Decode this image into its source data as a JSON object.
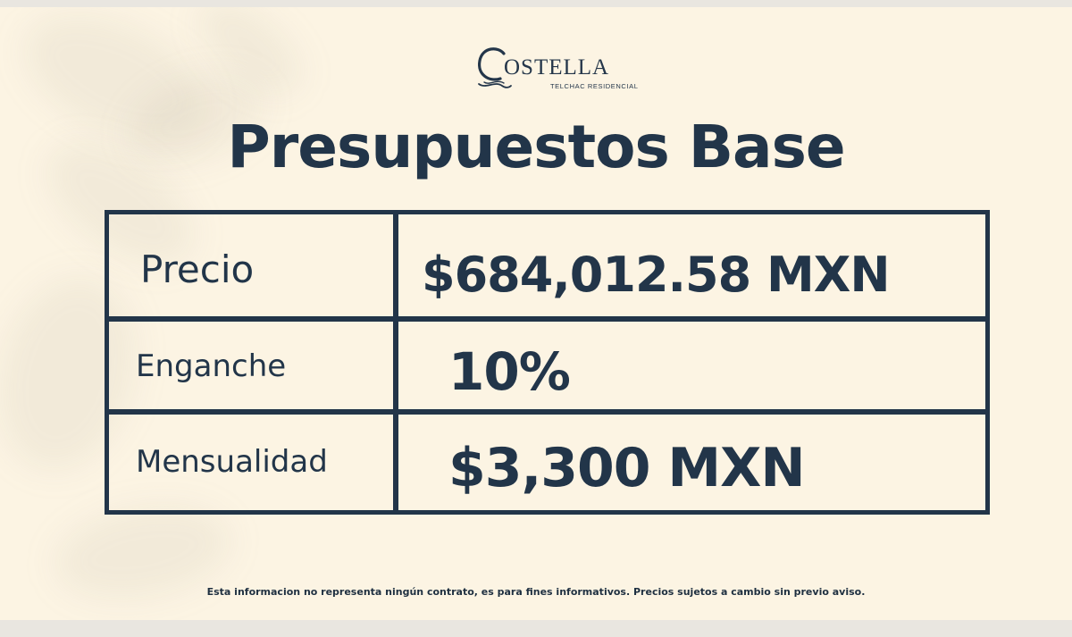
{
  "brand": {
    "name": "OSTELLA",
    "subtitle": "TELCHAC RESIDENCIAL",
    "logo_letter": "C"
  },
  "title": "Presupuestos Base",
  "table": {
    "rows": [
      {
        "label": "Precio",
        "value": "$684,012.58 MXN"
      },
      {
        "label": "Enganche",
        "value": "10%"
      },
      {
        "label": "Mensualidad",
        "value": "$3,300 MXN"
      }
    ]
  },
  "disclaimer": "Esta informacion no representa ningún contrato, es para fines informativos. Precios sujetos a cambio sin previo aviso.",
  "colors": {
    "background": "#fcf4e3",
    "ink": "#223549"
  }
}
